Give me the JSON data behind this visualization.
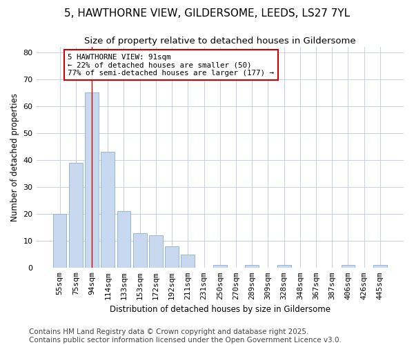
{
  "title": "5, HAWTHORNE VIEW, GILDERSOME, LEEDS, LS27 7YL",
  "subtitle": "Size of property relative to detached houses in Gildersome",
  "xlabel": "Distribution of detached houses by size in Gildersome",
  "ylabel": "Number of detached properties",
  "categories": [
    "55sqm",
    "75sqm",
    "94sqm",
    "114sqm",
    "133sqm",
    "153sqm",
    "172sqm",
    "192sqm",
    "211sqm",
    "231sqm",
    "250sqm",
    "270sqm",
    "289sqm",
    "309sqm",
    "328sqm",
    "348sqm",
    "367sqm",
    "387sqm",
    "406sqm",
    "426sqm",
    "445sqm"
  ],
  "values": [
    20,
    39,
    65,
    43,
    21,
    13,
    12,
    8,
    5,
    0,
    1,
    0,
    1,
    0,
    1,
    0,
    0,
    0,
    1,
    0,
    1
  ],
  "bar_color": "#c8d8ee",
  "bar_edge_color": "#8aadce",
  "vline_x_index": 2,
  "vline_color": "#cc0000",
  "annotation_text": "5 HAWTHORNE VIEW: 91sqm\n← 22% of detached houses are smaller (50)\n77% of semi-detached houses are larger (177) →",
  "annotation_box_color": "#ffffff",
  "annotation_box_edge": "#cc0000",
  "ylim": [
    0,
    82
  ],
  "yticks": [
    0,
    10,
    20,
    30,
    40,
    50,
    60,
    70,
    80
  ],
  "grid_color": "#c8d0e0",
  "bg_color": "#ffffff",
  "plot_bg_color": "#ffffff",
  "footer": "Contains HM Land Registry data © Crown copyright and database right 2025.\nContains public sector information licensed under the Open Government Licence v3.0.",
  "title_fontsize": 11,
  "subtitle_fontsize": 9.5,
  "axis_fontsize": 8.5,
  "tick_fontsize": 8,
  "footer_fontsize": 7.5
}
